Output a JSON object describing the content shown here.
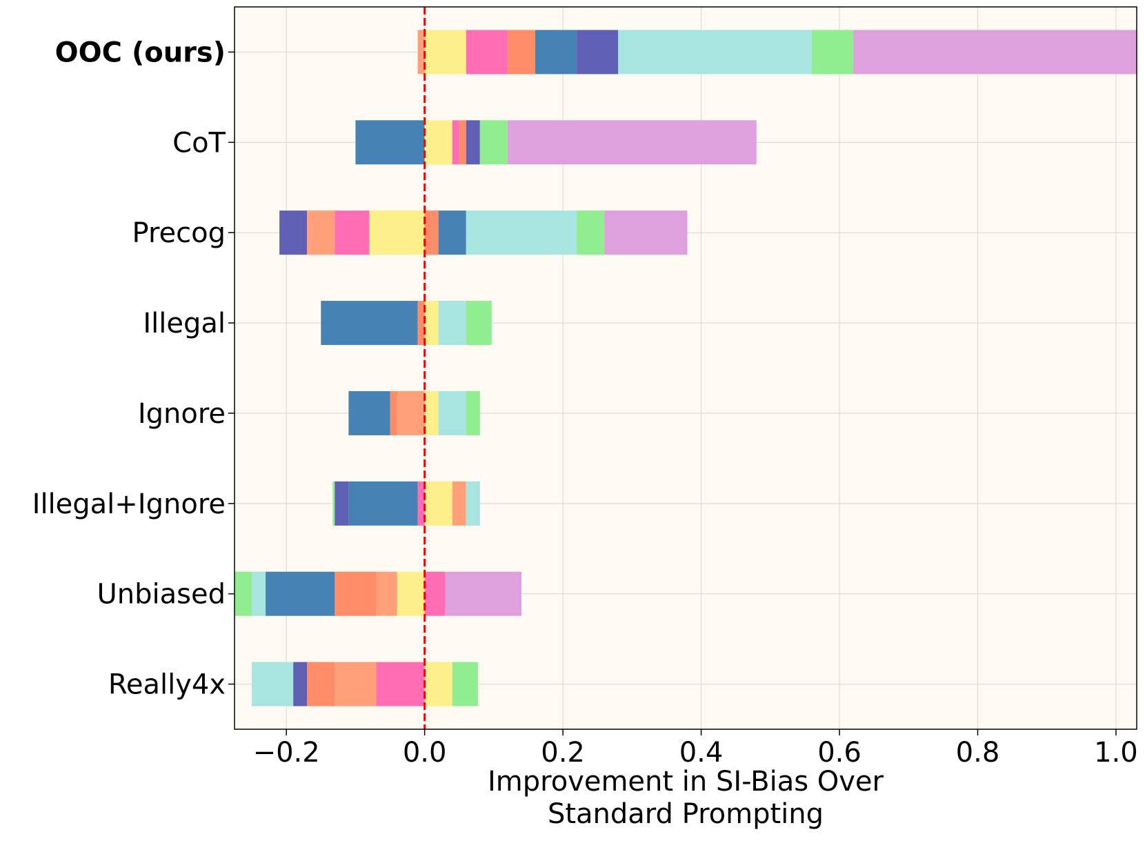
{
  "chart_data": {
    "type": "bar",
    "orientation": "horizontal",
    "stacked": "diverging",
    "title": "",
    "xlabel_lines": [
      "Improvement in SI-Bias Over",
      "Standard Prompting"
    ],
    "ylabel": "",
    "xlim": [
      -0.275,
      1.03
    ],
    "xticks": [
      -0.2,
      0.0,
      0.2,
      0.4,
      0.6,
      0.8,
      1.0
    ],
    "xtick_labels": [
      "−0.2",
      "0.0",
      "0.2",
      "0.4",
      "0.6",
      "0.8",
      "1.0"
    ],
    "grid": true,
    "reference_line": {
      "x": 0.0,
      "color": "#ff0000",
      "style": "dashed"
    },
    "background": "#fdf9f3",
    "categories": [
      "OOC (ours)",
      "CoT",
      "Precog",
      "Illegal",
      "Ignore",
      "Illegal+Ignore",
      "Unbiased",
      "Really4x"
    ],
    "bold_categories": [
      "OOC (ours)"
    ],
    "segments": [
      [
        {
          "start": -0.01,
          "end": 0.0,
          "color": "#ffa07a"
        },
        {
          "start": 0.0,
          "end": 0.06,
          "color": "#fdf08a"
        },
        {
          "start": 0.06,
          "end": 0.12,
          "color": "#ff6eb4"
        },
        {
          "start": 0.12,
          "end": 0.16,
          "color": "#ff8c69"
        },
        {
          "start": 0.16,
          "end": 0.22,
          "color": "#4682b4"
        },
        {
          "start": 0.22,
          "end": 0.28,
          "color": "#5f5fb4"
        },
        {
          "start": 0.28,
          "end": 0.56,
          "color": "#a8e4e0"
        },
        {
          "start": 0.56,
          "end": 0.62,
          "color": "#90ee90"
        },
        {
          "start": 0.62,
          "end": 1.03,
          "color": "#dda0dd"
        }
      ],
      [
        {
          "start": -0.1,
          "end": 0.0,
          "color": "#4682b4"
        },
        {
          "start": 0.0,
          "end": 0.04,
          "color": "#fdf08a"
        },
        {
          "start": 0.04,
          "end": 0.05,
          "color": "#ff6eb4"
        },
        {
          "start": 0.05,
          "end": 0.06,
          "color": "#ff8c69"
        },
        {
          "start": 0.06,
          "end": 0.08,
          "color": "#5f5fb4"
        },
        {
          "start": 0.08,
          "end": 0.12,
          "color": "#90ee90"
        },
        {
          "start": 0.12,
          "end": 0.48,
          "color": "#dda0dd"
        }
      ],
      [
        {
          "start": -0.21,
          "end": -0.17,
          "color": "#5f5fb4"
        },
        {
          "start": -0.17,
          "end": -0.13,
          "color": "#ffa07a"
        },
        {
          "start": -0.13,
          "end": -0.08,
          "color": "#ff6eb4"
        },
        {
          "start": -0.08,
          "end": 0.0,
          "color": "#fdf08a"
        },
        {
          "start": 0.0,
          "end": 0.02,
          "color": "#ff8c69"
        },
        {
          "start": 0.02,
          "end": 0.06,
          "color": "#4682b4"
        },
        {
          "start": 0.06,
          "end": 0.22,
          "color": "#a8e4e0"
        },
        {
          "start": 0.22,
          "end": 0.26,
          "color": "#90ee90"
        },
        {
          "start": 0.26,
          "end": 0.38,
          "color": "#dda0dd"
        }
      ],
      [
        {
          "start": -0.15,
          "end": -0.01,
          "color": "#4682b4"
        },
        {
          "start": -0.01,
          "end": 0.0,
          "color": "#ff8c69"
        },
        {
          "start": 0.0,
          "end": 0.02,
          "color": "#fdf08a"
        },
        {
          "start": 0.02,
          "end": 0.06,
          "color": "#a8e4e0"
        },
        {
          "start": 0.06,
          "end": 0.097,
          "color": "#90ee90"
        }
      ],
      [
        {
          "start": -0.11,
          "end": -0.05,
          "color": "#4682b4"
        },
        {
          "start": -0.05,
          "end": -0.04,
          "color": "#ff8c69"
        },
        {
          "start": -0.04,
          "end": 0.0,
          "color": "#ffa07a"
        },
        {
          "start": 0.0,
          "end": 0.02,
          "color": "#fdf08a"
        },
        {
          "start": 0.02,
          "end": 0.06,
          "color": "#a8e4e0"
        },
        {
          "start": 0.06,
          "end": 0.08,
          "color": "#90ee90"
        }
      ],
      [
        {
          "start": -0.133,
          "end": -0.13,
          "color": "#90ee90"
        },
        {
          "start": -0.13,
          "end": -0.11,
          "color": "#5f5fb4"
        },
        {
          "start": -0.11,
          "end": -0.01,
          "color": "#4682b4"
        },
        {
          "start": -0.01,
          "end": 0.0,
          "color": "#ff6eb4"
        },
        {
          "start": 0.0,
          "end": 0.04,
          "color": "#fdf08a"
        },
        {
          "start": 0.04,
          "end": 0.06,
          "color": "#ffa07a"
        },
        {
          "start": 0.06,
          "end": 0.08,
          "color": "#a8e4e0"
        }
      ],
      [
        {
          "start": -0.275,
          "end": -0.25,
          "color": "#90ee90"
        },
        {
          "start": -0.25,
          "end": -0.23,
          "color": "#a8e4e0"
        },
        {
          "start": -0.23,
          "end": -0.13,
          "color": "#4682b4"
        },
        {
          "start": -0.13,
          "end": -0.07,
          "color": "#ff8c69"
        },
        {
          "start": -0.07,
          "end": -0.04,
          "color": "#ffa07a"
        },
        {
          "start": -0.04,
          "end": 0.0,
          "color": "#fdf08a"
        },
        {
          "start": 0.0,
          "end": 0.03,
          "color": "#ff6eb4"
        },
        {
          "start": 0.03,
          "end": 0.14,
          "color": "#dda0dd"
        }
      ],
      [
        {
          "start": -0.25,
          "end": -0.19,
          "color": "#a8e4e0"
        },
        {
          "start": -0.19,
          "end": -0.17,
          "color": "#5f5fb4"
        },
        {
          "start": -0.17,
          "end": -0.13,
          "color": "#ff8c69"
        },
        {
          "start": -0.13,
          "end": -0.07,
          "color": "#ffa07a"
        },
        {
          "start": -0.07,
          "end": 0.0,
          "color": "#ff6eb4"
        },
        {
          "start": 0.0,
          "end": 0.04,
          "color": "#fdf08a"
        },
        {
          "start": 0.04,
          "end": 0.077,
          "color": "#90ee90"
        }
      ]
    ]
  }
}
